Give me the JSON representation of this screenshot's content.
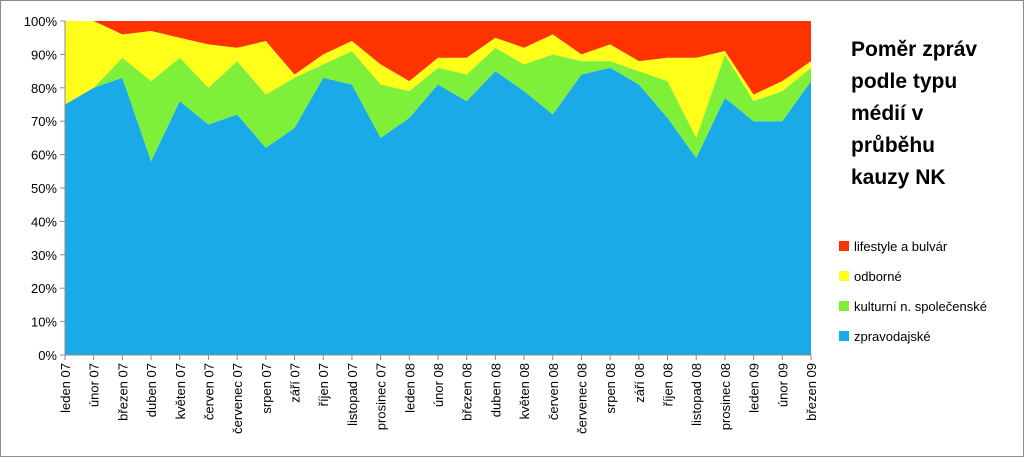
{
  "chart_data": {
    "type": "area",
    "stacked": true,
    "percent": true,
    "title_lines": [
      "Poměr zpráv",
      "podle typu",
      "médií v",
      "průběhu",
      "kauzy NK"
    ],
    "ylim": [
      0,
      100
    ],
    "y_ticks": [
      "0%",
      "10%",
      "20%",
      "30%",
      "40%",
      "50%",
      "60%",
      "70%",
      "80%",
      "90%",
      "100%"
    ],
    "categories": [
      "leden 07",
      "únor 07",
      "březen 07",
      "duben 07",
      "květen 07",
      "červen 07",
      "červenec 07",
      "srpen 07",
      "září 07",
      "říjen 07",
      "listopad 07",
      "prosinec 07",
      "leden 08",
      "únor 08",
      "březen 08",
      "duben 08",
      "květen 08",
      "červen 08",
      "červenec 08",
      "srpen 08",
      "září 08",
      "říjen 08",
      "listopad 08",
      "prosinec 08",
      "leden 09",
      "únor 09",
      "březen 09"
    ],
    "series": [
      {
        "name": "zpravodajské",
        "color": "#1AAAE8",
        "values": [
          75,
          80,
          83,
          58,
          76,
          69,
          72,
          62,
          68,
          83,
          81,
          65,
          71,
          81,
          76,
          85,
          79,
          72,
          84,
          86,
          81,
          71,
          59,
          77,
          70,
          70,
          82
        ]
      },
      {
        "name": "kulturní n. společenské",
        "color": "#7FF03A",
        "values": [
          0,
          0,
          6,
          24,
          13,
          11,
          16,
          16,
          15,
          4,
          10,
          16,
          8,
          5,
          8,
          7,
          8,
          18,
          4,
          2,
          4,
          11,
          6,
          13,
          6,
          9,
          4
        ]
      },
      {
        "name": "odborné",
        "color": "#FFFF1A",
        "values": [
          25,
          20,
          7,
          15,
          6,
          13,
          4,
          16,
          1,
          3,
          3,
          6,
          3,
          3,
          5,
          3,
          5,
          6,
          2,
          5,
          3,
          7,
          24,
          1,
          2,
          3,
          2
        ]
      },
      {
        "name": "lifestyle a bulvár",
        "color": "#FF3300",
        "values": [
          0,
          0,
          4,
          3,
          5,
          7,
          8,
          6,
          16,
          10,
          6,
          13,
          18,
          11,
          11,
          5,
          8,
          4,
          10,
          7,
          12,
          11,
          11,
          9,
          22,
          18,
          12
        ]
      }
    ],
    "legend_order": [
      "lifestyle a bulvár",
      "odborné",
      "kulturní n. společenské",
      "zpravodajské"
    ],
    "legend_position": "right",
    "grid": false
  }
}
